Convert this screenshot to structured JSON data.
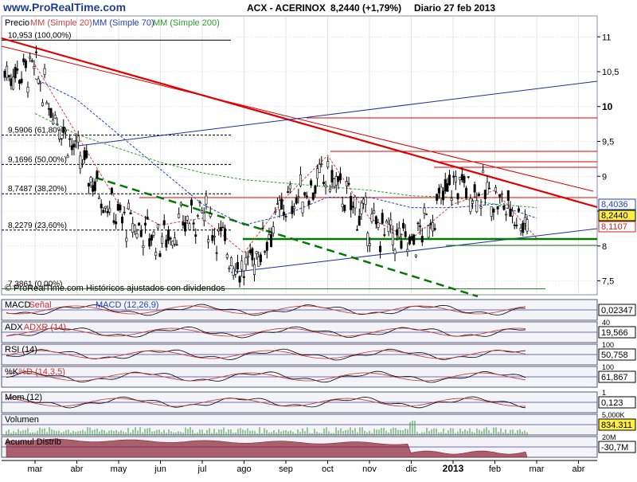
{
  "header": {
    "brand": "www.ProRealTime.com",
    "ticker": "ACX - ACERINOX",
    "price_change": "8,2440 (+1,79%)",
    "period_date": "Diario  27 feb 2013"
  },
  "main_legend": {
    "price": "Precio",
    "ma20": "MM (Simple 20)",
    "ma70": "MM (Simple 70)",
    "ma200": "MM (Simple 200)"
  },
  "fib_levels": [
    {
      "label": "10,953 (100,00%)",
      "value": 10.953
    },
    {
      "label": "9,5906 (61,80%)",
      "value": 9.5906
    },
    {
      "label": "9,1696 (50,00%)",
      "value": 9.1696
    },
    {
      "label": "8,7487 (38,20%)",
      "value": 8.7487
    },
    {
      "label": "8,2279 (23,60%)",
      "value": 8.2279
    },
    {
      "label": "7,3861 (0,00%)",
      "value": 7.3861
    }
  ],
  "copyright": "© ProRealTime.com Históricos ajustados con dividendos",
  "price_tags": [
    {
      "text": "8,4036",
      "value": 8.4036,
      "color": "#1f3fbf",
      "bg": "#ffffff"
    },
    {
      "text": "8,2440",
      "value": 8.244,
      "color": "#000000",
      "bg": "#ffee44"
    },
    {
      "text": "8,1107",
      "value": 8.1107,
      "color": "#cc2222",
      "bg": "#ffffff"
    }
  ],
  "panels": [
    {
      "title": "MACD",
      "subtitle": "Señal",
      "legend": "MACD (12,26,9)",
      "value": "0,02347",
      "top_tick": ""
    },
    {
      "title": "ADX",
      "subtitle": "ADXR (14)",
      "legend": "",
      "value": "19,566",
      "top_tick": "40"
    },
    {
      "title": "RSI (14)",
      "subtitle": "",
      "legend": "",
      "value": "50,758",
      "top_tick": "100"
    },
    {
      "title": "%K",
      "subtitle": "%D (14,3,5)",
      "legend": "",
      "value": "61,867",
      "top_tick": "100"
    },
    {
      "title": "Mom (12)",
      "subtitle": "",
      "legend": "",
      "value": "0,123",
      "top_tick": "1"
    },
    {
      "title": "Volumen",
      "subtitle": "",
      "legend": "",
      "value": "834.311",
      "top_tick": "5,000K"
    },
    {
      "title": "Acumul Distrib",
      "subtitle": "",
      "legend": "",
      "value": "-30,7M",
      "top_tick": "20M"
    }
  ],
  "x_axis": {
    "months": [
      "mar",
      "abr",
      "may",
      "jun",
      "jul",
      "ago",
      "sep",
      "oct",
      "nov",
      "dic",
      "2013",
      "feb",
      "mar",
      "abr"
    ]
  },
  "chart_data": {
    "type": "line",
    "title": "ACX - ACERINOX",
    "subtitle": "Diario 27 feb 2013",
    "xlabel": "",
    "ylabel": "",
    "ylim": [
      7.3,
      11.3
    ],
    "y_ticks": [
      7.5,
      8,
      8.5,
      9,
      9.5,
      10,
      10.5,
      11
    ],
    "y_tick_labels": [
      "7,5",
      "8",
      "8,5",
      "9",
      "9,5",
      "10",
      "10,5",
      "11"
    ],
    "grid": true,
    "series": [
      {
        "name": "Precio",
        "color": "#000000",
        "x": [
          "mar",
          "abr",
          "may",
          "jun",
          "jul",
          "ago",
          "sep",
          "oct",
          "nov",
          "dic",
          "2013",
          "feb",
          "mar"
        ],
        "values": [
          10.5,
          9.3,
          8.4,
          8.1,
          8.5,
          7.6,
          8.6,
          9.0,
          8.3,
          8.0,
          8.9,
          8.7,
          8.244
        ]
      },
      {
        "name": "MM (Simple 20)",
        "color": "#d04040",
        "x": [
          "mar",
          "abr",
          "may",
          "jun",
          "jul",
          "ago",
          "sep",
          "oct",
          "nov",
          "dic",
          "2013",
          "feb",
          "mar"
        ],
        "values": [
          10.6,
          9.6,
          8.6,
          8.3,
          8.4,
          7.9,
          8.7,
          9.3,
          8.4,
          8.1,
          8.6,
          8.8,
          8.11
        ]
      },
      {
        "name": "MM (Simple 70)",
        "color": "#1f3fbf",
        "x": [
          "mar",
          "abr",
          "may",
          "jun",
          "jul",
          "ago",
          "sep",
          "oct",
          "nov",
          "dic",
          "2013",
          "feb",
          "mar"
        ],
        "values": [
          10.4,
          10.1,
          9.6,
          9.1,
          8.6,
          8.3,
          8.45,
          8.7,
          8.7,
          8.55,
          8.55,
          8.6,
          8.4
        ]
      },
      {
        "name": "MM (Simple 200)",
        "color": "#2aa02a",
        "x": [
          "mar",
          "abr",
          "may",
          "jun",
          "jul",
          "ago",
          "sep",
          "oct",
          "nov",
          "dic",
          "2013",
          "feb",
          "mar"
        ],
        "values": [
          9.9,
          9.6,
          9.4,
          9.2,
          9.05,
          8.95,
          8.9,
          8.85,
          8.8,
          8.72,
          8.7,
          8.6,
          8.55
        ]
      }
    ]
  },
  "colors": {
    "axis": "#000000",
    "grid": "#c8c8c8",
    "panel_border": "#555577",
    "trend_red": "#e00000",
    "trend_blue": "#1f2fa0",
    "support_green": "#007a00",
    "volume": "#3a9a3a",
    "acumul": "#8a2030"
  }
}
